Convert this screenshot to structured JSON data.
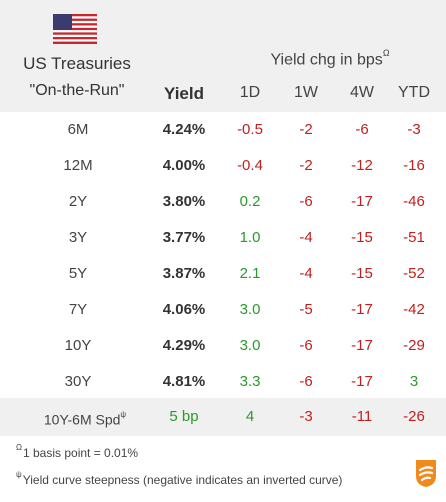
{
  "header": {
    "title_line1": "US Treasuries",
    "title_line2": "\"On-the-Run\"",
    "chg_title": "Yield chg in bps",
    "chg_title_sup": "Ω",
    "col_yield": "Yield",
    "col_1d": "1D",
    "col_1w": "1W",
    "col_4w": "4W",
    "col_ytd": "YTD"
  },
  "rows": [
    {
      "term": "6M",
      "yield": "4.24%",
      "d1": "-0.5",
      "w1": "-2",
      "w4": "-6",
      "ytd": "-3"
    },
    {
      "term": "12M",
      "yield": "4.00%",
      "d1": "-0.4",
      "w1": "-2",
      "w4": "-12",
      "ytd": "-16"
    },
    {
      "term": "2Y",
      "yield": "3.80%",
      "d1": "0.2",
      "w1": "-6",
      "w4": "-17",
      "ytd": "-46"
    },
    {
      "term": "3Y",
      "yield": "3.77%",
      "d1": "1.0",
      "w1": "-4",
      "w4": "-15",
      "ytd": "-51"
    },
    {
      "term": "5Y",
      "yield": "3.87%",
      "d1": "2.1",
      "w1": "-4",
      "w4": "-15",
      "ytd": "-52"
    },
    {
      "term": "7Y",
      "yield": "4.06%",
      "d1": "3.0",
      "w1": "-5",
      "w4": "-17",
      "ytd": "-42"
    },
    {
      "term": "10Y",
      "yield": "4.29%",
      "d1": "3.0",
      "w1": "-6",
      "w4": "-17",
      "ytd": "-29"
    },
    {
      "term": "30Y",
      "yield": "4.81%",
      "d1": "3.3",
      "w1": "-6",
      "w4": "-17",
      "ytd": "3"
    }
  ],
  "spread": {
    "label": "10Y-6M Spd",
    "label_sup": "ψ",
    "value": "5 bp",
    "d1": "4",
    "w1": "-3",
    "w4": "-11",
    "ytd": "-26"
  },
  "footnotes": {
    "note1_sup": "Ω",
    "note1": "1 basis point = 0.01%",
    "note2_sup": "ψ",
    "note2": "Yield curve steepness (negative indicates an inverted curve)"
  },
  "colors": {
    "negative": "#c0201f",
    "positive": "#2a9a2a",
    "header_bg": "#f0f0f0",
    "logo_orange": "#f08a1c"
  },
  "icons": {
    "flag": "us-flag-icon",
    "logo": "brand-logo-icon"
  }
}
